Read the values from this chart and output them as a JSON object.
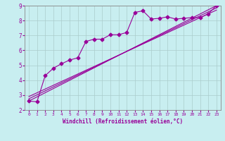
{
  "xlabel": "Windchill (Refroidissement éolien,°C)",
  "ylabel": "",
  "background_color": "#c8eef0",
  "line_color": "#990099",
  "grid_color": "#aacccc",
  "spine_color": "#888888",
  "xlim": [
    -0.5,
    23.5
  ],
  "ylim": [
    2,
    9
  ],
  "xticks": [
    0,
    1,
    2,
    3,
    4,
    5,
    6,
    7,
    8,
    9,
    10,
    11,
    12,
    13,
    14,
    15,
    16,
    17,
    18,
    19,
    20,
    21,
    22,
    23
  ],
  "yticks": [
    2,
    3,
    4,
    5,
    6,
    7,
    8,
    9
  ],
  "series": [
    [
      0,
      2.6
    ],
    [
      1,
      2.55
    ],
    [
      2,
      4.3
    ],
    [
      3,
      4.8
    ],
    [
      4,
      5.1
    ],
    [
      5,
      5.35
    ],
    [
      6,
      5.5
    ],
    [
      7,
      6.6
    ],
    [
      8,
      6.75
    ],
    [
      9,
      6.75
    ],
    [
      10,
      7.05
    ],
    [
      11,
      7.05
    ],
    [
      12,
      7.2
    ],
    [
      13,
      8.55
    ],
    [
      14,
      8.65
    ],
    [
      15,
      8.1
    ],
    [
      16,
      8.15
    ],
    [
      17,
      8.25
    ],
    [
      18,
      8.1
    ],
    [
      19,
      8.15
    ],
    [
      20,
      8.2
    ],
    [
      21,
      8.2
    ],
    [
      22,
      8.45
    ],
    [
      23,
      9.0
    ]
  ],
  "regression_lines": [
    {
      "x": [
        0,
        23
      ],
      "y": [
        2.6,
        9.0
      ]
    },
    {
      "x": [
        0,
        23
      ],
      "y": [
        2.75,
        8.85
      ]
    },
    {
      "x": [
        0,
        23
      ],
      "y": [
        2.9,
        8.7
      ]
    }
  ],
  "tick_fontsize_x": 4.5,
  "tick_fontsize_y": 5.5,
  "xlabel_fontsize": 5.5,
  "marker_size": 2.5,
  "line_width": 0.8
}
